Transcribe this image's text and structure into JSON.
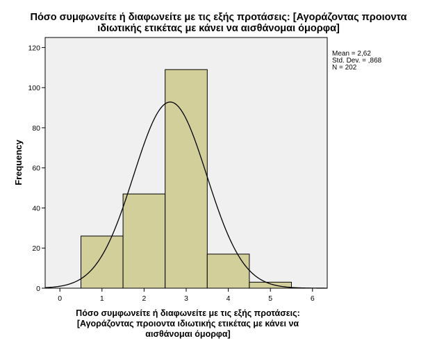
{
  "chart_data": {
    "type": "bar",
    "subtype": "histogram",
    "title": [
      "Πόσο συμφωνείτε ή διαφωνείτε με τις εξής προτάσεις: [Αγοράζοντας προιοντα",
      "ιδιωτικής ετικέτας με κάνει να αισθάνομαι όμορφα]"
    ],
    "xlabel": [
      "Πόσο συμφωνείτε ή διαφωνείτε με τις εξής προτάσεις:",
      "[Αγοράζοντας προιοντα ιδιωτικής ετικέτας με κάνει να",
      "αισθάνομαι όμορφα]"
    ],
    "ylabel": "Frequency",
    "bins": [
      {
        "x": 1,
        "value": 26
      },
      {
        "x": 2,
        "value": 47
      },
      {
        "x": 3,
        "value": 109
      },
      {
        "x": 4,
        "value": 17
      },
      {
        "x": 5,
        "value": 3
      }
    ],
    "xlim": [
      -0.35,
      6.35
    ],
    "ylim": [
      0,
      125
    ],
    "xticks": [
      "0",
      "1",
      "2",
      "3",
      "4",
      "5",
      "6"
    ],
    "yticks": [
      "0",
      "20",
      "40",
      "60",
      "80",
      "100",
      "120"
    ],
    "normal_curve": {
      "mean": 2.62,
      "std": 0.868,
      "n": 202,
      "bin_width": 1
    },
    "stats": [
      "Mean = 2,62",
      "Std. Dev. = ,868",
      "N = 202"
    ],
    "grid": false,
    "colors": {
      "bar_fill": "#d3cf9b",
      "plot_background": "#f0f0f0",
      "curve": "#000000"
    }
  }
}
